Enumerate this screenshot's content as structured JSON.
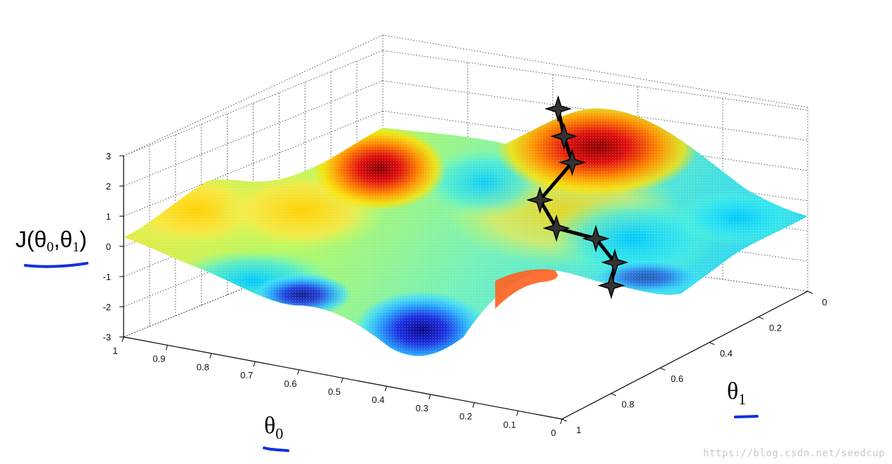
{
  "chart_data": {
    "type": "surface",
    "zlabel": {
      "text": "J(θ",
      "sub0": "0",
      "comma": ",θ",
      "sub1": "1",
      "close": ")"
    },
    "xlabel": {
      "text": "θ",
      "sub": "0"
    },
    "ylabel": {
      "text": "θ",
      "sub": "1"
    },
    "z_ticks": [
      "3",
      "2",
      "1",
      "0",
      "-1",
      "-2",
      "-3"
    ],
    "z_values": [
      3,
      2,
      1,
      0,
      -1,
      -2,
      -3
    ],
    "theta0_ticks": [
      "1",
      "0.9",
      "0.8",
      "0.7",
      "0.6",
      "0.5",
      "0.4",
      "0.3",
      "0.2",
      "0.1",
      "0"
    ],
    "theta0_values": [
      1,
      0.9,
      0.8,
      0.7,
      0.6,
      0.5,
      0.4,
      0.3,
      0.2,
      0.1,
      0
    ],
    "theta1_ticks": [
      "0",
      "0.2",
      "0.4",
      "0.6",
      "0.8",
      "1"
    ],
    "theta1_values": [
      0,
      0.2,
      0.4,
      0.6,
      0.8,
      1
    ],
    "zlim": [
      -3,
      3
    ],
    "xlim": [
      0,
      1
    ],
    "ylim": [
      0,
      1
    ],
    "colormap": "jet",
    "grid": true,
    "descent_path": {
      "marker": "star",
      "color": "#000000",
      "points": [
        [
          0.53,
          0.07,
          1.9
        ],
        [
          0.5,
          0.1,
          1.2
        ],
        [
          0.47,
          0.12,
          0.5
        ],
        [
          0.51,
          0.18,
          -0.6
        ],
        [
          0.45,
          0.22,
          -1.2
        ],
        [
          0.36,
          0.22,
          -1.3
        ],
        [
          0.3,
          0.25,
          -1.8
        ],
        [
          0.28,
          0.3,
          -2.3
        ]
      ]
    }
  },
  "watermark": "https://blog.csdn.net/seedcup",
  "colors": {
    "underline": "#1030e0",
    "path": "#000000"
  }
}
